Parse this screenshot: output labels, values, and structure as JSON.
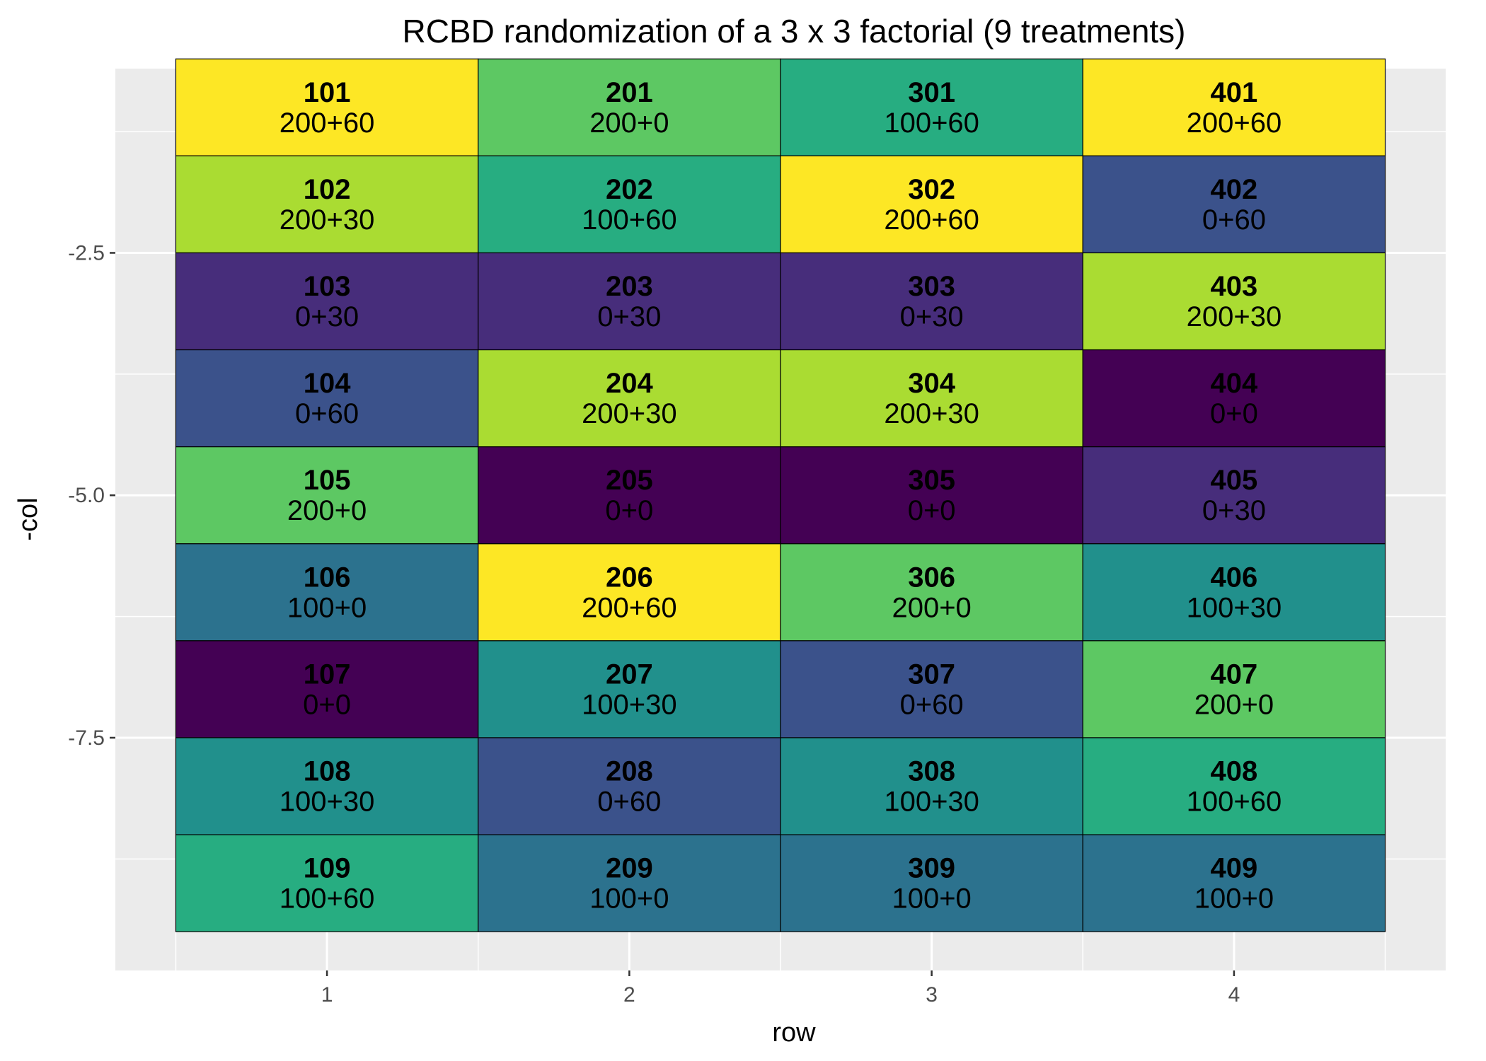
{
  "chart_data": {
    "type": "heatmap",
    "title": "RCBD randomization of a 3 x 3 factorial (9 treatments)",
    "xlabel": "row",
    "ylabel": "-col",
    "x_ticks": [
      1,
      2,
      3,
      4
    ],
    "y_ticks": [
      -2.5,
      -5.0,
      -7.5
    ],
    "y_tick_labels": [
      "-2.5",
      "-5.0",
      "-7.5"
    ],
    "xlim": [
      0.3,
      4.7
    ],
    "ylim": [
      -9.9,
      -0.6
    ],
    "grid": true,
    "legend": "none",
    "treatment_colors": {
      "0+0": "#440154",
      "0+30": "#472D7B",
      "0+60": "#3B528B",
      "100+0": "#2C728E",
      "100+30": "#21908C",
      "100+60": "#27AD81",
      "200+0": "#5DC863",
      "200+30": "#AADC32",
      "200+60": "#FDE725"
    },
    "cells": [
      {
        "row": 1,
        "col": 1,
        "plot": "101",
        "treatment": "200+60"
      },
      {
        "row": 1,
        "col": 2,
        "plot": "102",
        "treatment": "200+30"
      },
      {
        "row": 1,
        "col": 3,
        "plot": "103",
        "treatment": "0+30"
      },
      {
        "row": 1,
        "col": 4,
        "plot": "104",
        "treatment": "0+60"
      },
      {
        "row": 1,
        "col": 5,
        "plot": "105",
        "treatment": "200+0"
      },
      {
        "row": 1,
        "col": 6,
        "plot": "106",
        "treatment": "100+0"
      },
      {
        "row": 1,
        "col": 7,
        "plot": "107",
        "treatment": "0+0"
      },
      {
        "row": 1,
        "col": 8,
        "plot": "108",
        "treatment": "100+30"
      },
      {
        "row": 1,
        "col": 9,
        "plot": "109",
        "treatment": "100+60"
      },
      {
        "row": 2,
        "col": 1,
        "plot": "201",
        "treatment": "200+0"
      },
      {
        "row": 2,
        "col": 2,
        "plot": "202",
        "treatment": "100+60"
      },
      {
        "row": 2,
        "col": 3,
        "plot": "203",
        "treatment": "0+30"
      },
      {
        "row": 2,
        "col": 4,
        "plot": "204",
        "treatment": "200+30"
      },
      {
        "row": 2,
        "col": 5,
        "plot": "205",
        "treatment": "0+0"
      },
      {
        "row": 2,
        "col": 6,
        "plot": "206",
        "treatment": "200+60"
      },
      {
        "row": 2,
        "col": 7,
        "plot": "207",
        "treatment": "100+30"
      },
      {
        "row": 2,
        "col": 8,
        "plot": "208",
        "treatment": "0+60"
      },
      {
        "row": 2,
        "col": 9,
        "plot": "209",
        "treatment": "100+0"
      },
      {
        "row": 3,
        "col": 1,
        "plot": "301",
        "treatment": "100+60"
      },
      {
        "row": 3,
        "col": 2,
        "plot": "302",
        "treatment": "200+60"
      },
      {
        "row": 3,
        "col": 3,
        "plot": "303",
        "treatment": "0+30"
      },
      {
        "row": 3,
        "col": 4,
        "plot": "304",
        "treatment": "200+30"
      },
      {
        "row": 3,
        "col": 5,
        "plot": "305",
        "treatment": "0+0"
      },
      {
        "row": 3,
        "col": 6,
        "plot": "306",
        "treatment": "200+0"
      },
      {
        "row": 3,
        "col": 7,
        "plot": "307",
        "treatment": "0+60"
      },
      {
        "row": 3,
        "col": 8,
        "plot": "308",
        "treatment": "100+30"
      },
      {
        "row": 3,
        "col": 9,
        "plot": "309",
        "treatment": "100+0"
      },
      {
        "row": 4,
        "col": 1,
        "plot": "401",
        "treatment": "200+60"
      },
      {
        "row": 4,
        "col": 2,
        "plot": "402",
        "treatment": "0+60"
      },
      {
        "row": 4,
        "col": 3,
        "plot": "403",
        "treatment": "200+30"
      },
      {
        "row": 4,
        "col": 4,
        "plot": "404",
        "treatment": "0+0"
      },
      {
        "row": 4,
        "col": 5,
        "plot": "405",
        "treatment": "0+30"
      },
      {
        "row": 4,
        "col": 6,
        "plot": "406",
        "treatment": "100+30"
      },
      {
        "row": 4,
        "col": 7,
        "plot": "407",
        "treatment": "200+0"
      },
      {
        "row": 4,
        "col": 8,
        "plot": "408",
        "treatment": "100+60"
      },
      {
        "row": 4,
        "col": 9,
        "plot": "409",
        "treatment": "100+0"
      }
    ]
  }
}
